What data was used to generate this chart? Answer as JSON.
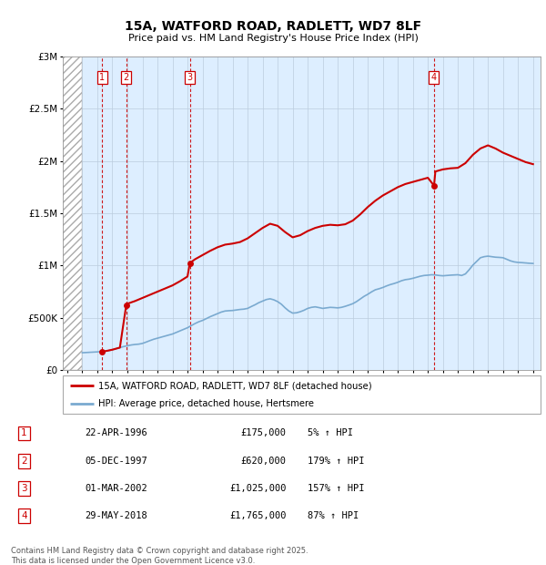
{
  "title": "15A, WATFORD ROAD, RADLETT, WD7 8LF",
  "subtitle": "Price paid vs. HM Land Registry's House Price Index (HPI)",
  "xlim": [
    1993.7,
    2025.5
  ],
  "ylim": [
    0,
    3000000
  ],
  "yticks": [
    0,
    500000,
    1000000,
    1500000,
    2000000,
    2500000,
    3000000
  ],
  "ytick_labels": [
    "£0",
    "£500K",
    "£1M",
    "£1.5M",
    "£2M",
    "£2.5M",
    "£3M"
  ],
  "sales": [
    {
      "num": 1,
      "year": 1996.31,
      "price": 175000
    },
    {
      "num": 2,
      "year": 1997.92,
      "price": 620000
    },
    {
      "num": 3,
      "year": 2002.16,
      "price": 1025000
    },
    {
      "num": 4,
      "year": 2018.41,
      "price": 1765000
    }
  ],
  "sale_labels": [
    {
      "num": 1,
      "date": "22-APR-1996",
      "price": "£175,000",
      "pct": "5% ↑ HPI"
    },
    {
      "num": 2,
      "date": "05-DEC-1997",
      "price": "£620,000",
      "pct": "179% ↑ HPI"
    },
    {
      "num": 3,
      "date": "01-MAR-2002",
      "price": "£1,025,000",
      "pct": "157% ↑ HPI"
    },
    {
      "num": 4,
      "date": "29-MAY-2018",
      "price": "£1,765,000",
      "pct": "87% ↑ HPI"
    }
  ],
  "hpi_color": "#7aaad0",
  "price_color": "#cc0000",
  "marker_color": "#cc0000",
  "bg_color": "#ddeeff",
  "hatch_color": "#aaaaaa",
  "grid_color": "#bbccdd",
  "sale_line_color": "#cc0000",
  "footer": "Contains HM Land Registry data © Crown copyright and database right 2025.\nThis data is licensed under the Open Government Licence v3.0.",
  "legend_label_red": "15A, WATFORD ROAD, RADLETT, WD7 8LF (detached house)",
  "legend_label_blue": "HPI: Average price, detached house, Hertsmere",
  "hpi_data_x": [
    1995.0,
    1995.25,
    1995.5,
    1995.75,
    1996.0,
    1996.25,
    1996.5,
    1996.75,
    1997.0,
    1997.25,
    1997.5,
    1997.75,
    1998.0,
    1998.25,
    1998.5,
    1998.75,
    1999.0,
    1999.25,
    1999.5,
    1999.75,
    2000.0,
    2000.25,
    2000.5,
    2000.75,
    2001.0,
    2001.25,
    2001.5,
    2001.75,
    2002.0,
    2002.25,
    2002.5,
    2002.75,
    2003.0,
    2003.25,
    2003.5,
    2003.75,
    2004.0,
    2004.25,
    2004.5,
    2004.75,
    2005.0,
    2005.25,
    2005.5,
    2005.75,
    2006.0,
    2006.25,
    2006.5,
    2006.75,
    2007.0,
    2007.25,
    2007.5,
    2007.75,
    2008.0,
    2008.25,
    2008.5,
    2008.75,
    2009.0,
    2009.25,
    2009.5,
    2009.75,
    2010.0,
    2010.25,
    2010.5,
    2010.75,
    2011.0,
    2011.25,
    2011.5,
    2011.75,
    2012.0,
    2012.25,
    2012.5,
    2012.75,
    2013.0,
    2013.25,
    2013.5,
    2013.75,
    2014.0,
    2014.25,
    2014.5,
    2014.75,
    2015.0,
    2015.25,
    2015.5,
    2015.75,
    2016.0,
    2016.25,
    2016.5,
    2016.75,
    2017.0,
    2017.25,
    2017.5,
    2017.75,
    2018.0,
    2018.25,
    2018.5,
    2018.75,
    2019.0,
    2019.25,
    2019.5,
    2019.75,
    2020.0,
    2020.25,
    2020.5,
    2020.75,
    2021.0,
    2021.25,
    2021.5,
    2021.75,
    2022.0,
    2022.25,
    2022.5,
    2022.75,
    2023.0,
    2023.25,
    2023.5,
    2023.75,
    2024.0,
    2024.25,
    2024.5,
    2024.75,
    2025.0
  ],
  "hpi_data_y": [
    166000,
    168000,
    170000,
    172000,
    174000,
    177000,
    181000,
    186000,
    195000,
    205000,
    215000,
    225000,
    233000,
    240000,
    245000,
    248000,
    255000,
    268000,
    282000,
    295000,
    305000,
    315000,
    325000,
    335000,
    345000,
    360000,
    375000,
    390000,
    405000,
    425000,
    445000,
    462000,
    475000,
    492000,
    510000,
    525000,
    540000,
    555000,
    565000,
    568000,
    570000,
    575000,
    580000,
    583000,
    590000,
    608000,
    625000,
    645000,
    660000,
    675000,
    682000,
    672000,
    655000,
    630000,
    595000,
    565000,
    545000,
    548000,
    558000,
    572000,
    590000,
    600000,
    605000,
    598000,
    590000,
    595000,
    600000,
    598000,
    595000,
    600000,
    610000,
    622000,
    635000,
    655000,
    680000,
    705000,
    725000,
    748000,
    768000,
    778000,
    790000,
    805000,
    818000,
    828000,
    840000,
    855000,
    865000,
    870000,
    878000,
    888000,
    898000,
    905000,
    908000,
    912000,
    910000,
    905000,
    902000,
    905000,
    908000,
    910000,
    912000,
    905000,
    920000,
    960000,
    1005000,
    1040000,
    1075000,
    1085000,
    1090000,
    1085000,
    1080000,
    1078000,
    1075000,
    1060000,
    1045000,
    1035000,
    1030000,
    1028000,
    1025000,
    1022000,
    1020000
  ],
  "price_data_x": [
    1996.31,
    1996.5,
    1997.0,
    1997.5,
    1997.92,
    1998.0,
    1998.5,
    1999.0,
    1999.5,
    2000.0,
    2000.5,
    2001.0,
    2001.5,
    2002.0,
    2002.16,
    2002.5,
    2003.0,
    2003.5,
    2004.0,
    2004.5,
    2005.0,
    2005.5,
    2006.0,
    2006.5,
    2007.0,
    2007.5,
    2008.0,
    2008.5,
    2009.0,
    2009.5,
    2010.0,
    2010.5,
    2011.0,
    2011.5,
    2012.0,
    2012.5,
    2013.0,
    2013.5,
    2014.0,
    2014.5,
    2015.0,
    2015.5,
    2016.0,
    2016.5,
    2017.0,
    2017.5,
    2018.0,
    2018.41,
    2018.5,
    2019.0,
    2019.5,
    2020.0,
    2020.5,
    2021.0,
    2021.5,
    2022.0,
    2022.5,
    2023.0,
    2023.5,
    2024.0,
    2024.5,
    2025.0
  ],
  "price_data_y": [
    175000,
    180000,
    195000,
    215000,
    620000,
    635000,
    660000,
    690000,
    720000,
    750000,
    780000,
    810000,
    850000,
    895000,
    1025000,
    1060000,
    1100000,
    1140000,
    1175000,
    1200000,
    1210000,
    1225000,
    1260000,
    1310000,
    1360000,
    1400000,
    1380000,
    1320000,
    1270000,
    1290000,
    1330000,
    1360000,
    1380000,
    1390000,
    1385000,
    1395000,
    1430000,
    1490000,
    1560000,
    1620000,
    1670000,
    1710000,
    1750000,
    1780000,
    1800000,
    1820000,
    1840000,
    1765000,
    1900000,
    1920000,
    1930000,
    1935000,
    1980000,
    2060000,
    2120000,
    2150000,
    2120000,
    2080000,
    2050000,
    2020000,
    1990000,
    1970000
  ]
}
